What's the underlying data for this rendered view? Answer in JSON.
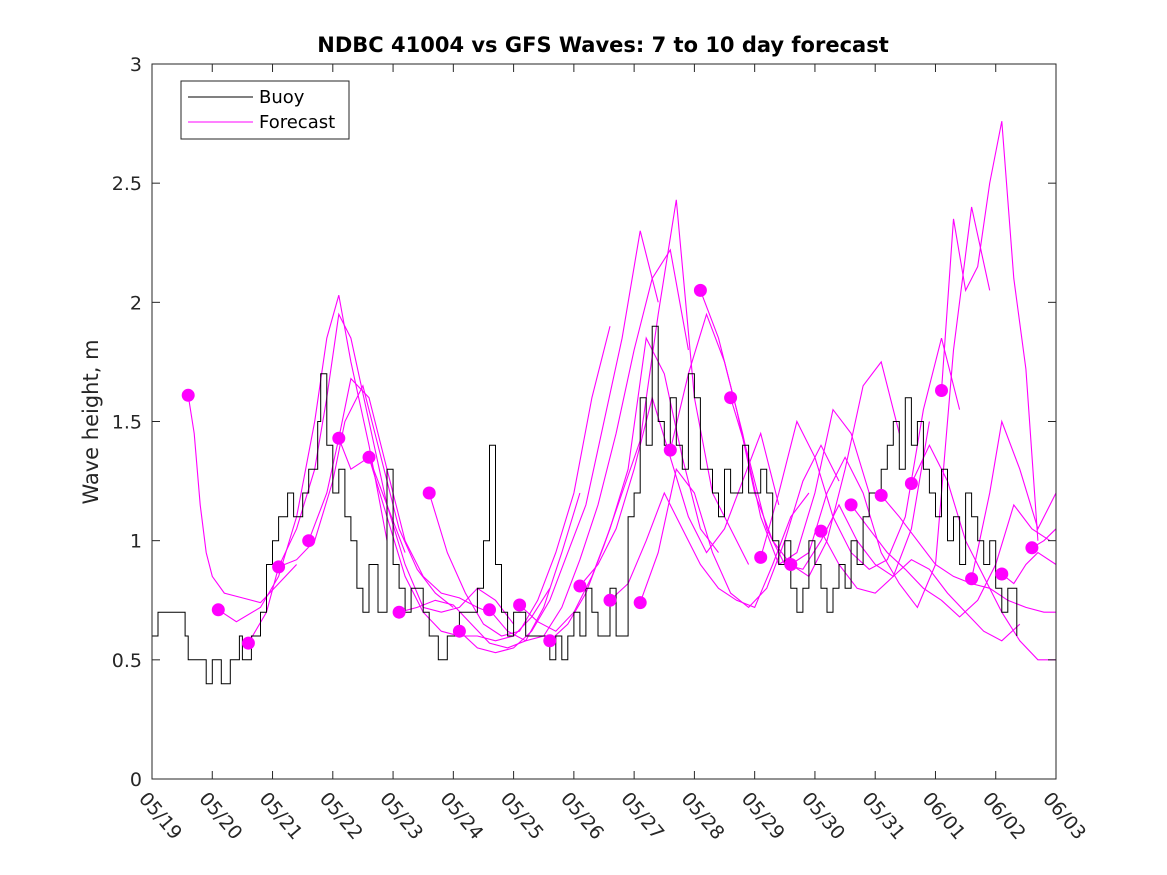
{
  "chart_data": {
    "type": "line",
    "title": "NDBC 41004 vs GFS Waves: 7 to 10 day forecast",
    "xlabel": "",
    "ylabel": "Wave height, m",
    "xlim_days": [
      0,
      15
    ],
    "ylim": [
      0,
      3
    ],
    "yticks": [
      "0",
      "0.5",
      "1",
      "1.5",
      "2",
      "2.5",
      "3"
    ],
    "xticks": [
      "05/19",
      "05/20",
      "05/21",
      "05/22",
      "05/23",
      "05/24",
      "05/25",
      "05/26",
      "05/27",
      "05/28",
      "05/29",
      "05/30",
      "05/31",
      "06/01",
      "06/02",
      "06/03"
    ],
    "grid": false,
    "legend": {
      "location": "top-left",
      "entries": [
        "Buoy",
        "Forecast"
      ]
    },
    "colors": {
      "buoy": "#000000",
      "forecast": "#ff00ff"
    },
    "buoy": {
      "name": "Buoy",
      "x": [
        0,
        0.1,
        0.5,
        0.55,
        0.6,
        0.8,
        0.9,
        1.0,
        1.05,
        1.15,
        1.3,
        1.45,
        1.5,
        1.65,
        1.8,
        1.9,
        2.0,
        2.1,
        2.25,
        2.35,
        2.5,
        2.6,
        2.75,
        2.8,
        2.9,
        3.0,
        3.1,
        3.2,
        3.3,
        3.4,
        3.5,
        3.6,
        3.75,
        3.9,
        4.0,
        4.1,
        4.2,
        4.3,
        4.5,
        4.6,
        4.75,
        4.9,
        5.0,
        5.1,
        5.3,
        5.4,
        5.5,
        5.6,
        5.7,
        5.8,
        5.9,
        6.0,
        6.1,
        6.2,
        6.3,
        6.45,
        6.6,
        6.7,
        6.8,
        6.9,
        7.0,
        7.1,
        7.2,
        7.3,
        7.4,
        7.5,
        7.6,
        7.7,
        7.8,
        7.9,
        8.0,
        8.1,
        8.2,
        8.3,
        8.4,
        8.5,
        8.6,
        8.7,
        8.8,
        8.9,
        9.0,
        9.1,
        9.2,
        9.3,
        9.4,
        9.5,
        9.6,
        9.7,
        9.8,
        9.9,
        10.0,
        10.1,
        10.2,
        10.3,
        10.4,
        10.5,
        10.6,
        10.7,
        10.8,
        10.9,
        11.0,
        11.1,
        11.2,
        11.3,
        11.4,
        11.5,
        11.6,
        11.7,
        11.8,
        11.9,
        12.0,
        12.1,
        12.2,
        12.3,
        12.4,
        12.5,
        12.6,
        12.7,
        12.8,
        12.9,
        13.0,
        13.1,
        13.2,
        13.3,
        13.4,
        13.5,
        13.6,
        13.7,
        13.8,
        13.9,
        14.0,
        14.1,
        14.2,
        14.35
      ],
      "y": [
        0.6,
        0.7,
        0.7,
        0.6,
        0.5,
        0.5,
        0.4,
        0.5,
        0.5,
        0.4,
        0.5,
        0.6,
        0.5,
        0.6,
        0.7,
        0.9,
        1.0,
        1.1,
        1.2,
        1.1,
        1.2,
        1.3,
        1.5,
        1.7,
        1.4,
        1.2,
        1.3,
        1.1,
        1.0,
        0.8,
        0.7,
        0.9,
        0.7,
        1.3,
        0.9,
        0.8,
        0.7,
        0.8,
        0.7,
        0.6,
        0.5,
        0.6,
        0.6,
        0.7,
        0.7,
        0.8,
        1.0,
        1.4,
        0.9,
        0.7,
        0.6,
        0.7,
        0.7,
        0.6,
        0.6,
        0.6,
        0.5,
        0.6,
        0.5,
        0.6,
        0.7,
        0.6,
        0.8,
        0.7,
        0.6,
        0.6,
        0.8,
        0.6,
        0.6,
        1.1,
        1.2,
        1.6,
        1.4,
        1.9,
        1.5,
        1.4,
        1.6,
        1.4,
        1.3,
        1.7,
        1.6,
        1.3,
        1.3,
        1.2,
        1.1,
        1.3,
        1.2,
        1.2,
        1.4,
        1.2,
        1.2,
        1.3,
        1.2,
        1.0,
        0.9,
        1.0,
        0.8,
        0.7,
        0.8,
        1.0,
        0.9,
        0.8,
        0.7,
        0.8,
        0.9,
        0.8,
        1.0,
        0.9,
        1.1,
        1.2,
        1.2,
        1.3,
        1.4,
        1.5,
        1.3,
        1.6,
        1.4,
        1.5,
        1.3,
        1.2,
        1.1,
        1.3,
        1.0,
        1.1,
        0.9,
        1.2,
        1.1,
        1.0,
        0.9,
        1.0,
        0.8,
        0.7,
        0.8,
        0.6
      ],
      "step": true
    },
    "forecast_points": {
      "name": "Forecast",
      "x": [
        0.6,
        1.1,
        1.6,
        2.1,
        2.6,
        3.1,
        3.6,
        4.1,
        4.6,
        5.1,
        5.6,
        6.1,
        6.6,
        7.1,
        7.6,
        8.1,
        8.6,
        9.1,
        9.6,
        10.1,
        10.6,
        11.1,
        11.6,
        12.1,
        12.6,
        13.1,
        13.6,
        14.1,
        14.6
      ],
      "y": [
        1.61,
        0.71,
        0.57,
        0.89,
        1.0,
        1.43,
        1.35,
        0.7,
        1.2,
        0.62,
        0.71,
        0.73,
        0.58,
        0.81,
        0.75,
        0.74,
        1.38,
        2.05,
        1.6,
        0.93,
        0.9,
        1.04,
        1.15,
        1.19,
        1.24,
        1.63,
        0.84,
        0.86,
        0.97
      ]
    },
    "forecast_runs": [
      {
        "x": [
          0.6,
          0.7,
          0.8,
          0.9,
          1.0,
          1.2,
          1.5,
          1.8,
          2.1,
          2.4
        ],
        "y": [
          1.61,
          1.45,
          1.15,
          0.95,
          0.85,
          0.78,
          0.76,
          0.74,
          0.82,
          0.9
        ]
      },
      {
        "x": [
          1.1,
          1.4,
          1.8,
          2.1,
          2.4,
          2.7,
          2.9,
          3.1,
          3.3,
          3.6,
          3.9
        ],
        "y": [
          0.71,
          0.66,
          0.72,
          0.85,
          1.1,
          1.5,
          1.85,
          2.03,
          1.75,
          1.4,
          1.0
        ]
      },
      {
        "x": [
          1.6,
          1.9,
          2.1,
          2.4,
          2.7,
          2.9,
          3.1,
          3.3,
          3.6,
          3.9,
          4.2
        ],
        "y": [
          0.57,
          0.7,
          0.89,
          1.05,
          1.3,
          1.6,
          1.95,
          1.85,
          1.5,
          1.15,
          0.95
        ]
      },
      {
        "x": [
          2.1,
          2.4,
          2.7,
          3.0,
          3.2,
          3.5,
          3.8,
          4.1,
          4.4,
          4.7,
          5.0
        ],
        "y": [
          0.89,
          0.92,
          1.0,
          1.25,
          1.5,
          1.65,
          1.35,
          1.05,
          0.88,
          0.78,
          0.72
        ]
      },
      {
        "x": [
          2.6,
          2.9,
          3.1,
          3.3,
          3.6,
          3.9,
          4.2,
          4.5,
          4.8,
          5.1,
          5.4,
          5.6
        ],
        "y": [
          1.0,
          1.2,
          1.43,
          1.68,
          1.6,
          1.3,
          1.0,
          0.85,
          0.78,
          0.76,
          0.72,
          0.7
        ]
      },
      {
        "x": [
          3.1,
          3.3,
          3.6,
          3.9,
          4.2,
          4.5,
          4.8,
          5.1,
          5.4,
          5.7,
          6.0
        ],
        "y": [
          1.43,
          1.3,
          1.35,
          1.15,
          0.9,
          0.72,
          0.7,
          0.72,
          0.8,
          0.75,
          0.65
        ]
      },
      {
        "x": [
          3.6,
          3.9,
          4.2,
          4.5,
          4.8,
          5.1,
          5.4,
          5.7,
          6.0,
          6.3,
          6.6
        ],
        "y": [
          1.35,
          1.1,
          0.85,
          0.7,
          0.62,
          0.6,
          0.6,
          0.58,
          0.6,
          0.68,
          0.8
        ]
      },
      {
        "x": [
          4.1,
          4.4,
          4.7,
          5.0,
          5.3,
          5.6,
          5.9,
          6.2,
          6.5,
          6.8,
          7.1
        ],
        "y": [
          0.7,
          0.72,
          0.75,
          0.73,
          0.65,
          0.57,
          0.55,
          0.58,
          0.72,
          0.95,
          1.2
        ]
      },
      {
        "x": [
          4.6,
          4.9,
          5.2,
          5.5,
          5.8,
          6.1,
          6.4,
          6.7,
          7.0,
          7.3,
          7.6
        ],
        "y": [
          1.2,
          0.95,
          0.78,
          0.65,
          0.6,
          0.62,
          0.75,
          0.95,
          1.2,
          1.6,
          1.9
        ]
      },
      {
        "x": [
          5.1,
          5.4,
          5.7,
          6.0,
          6.3,
          6.6,
          6.9,
          7.2,
          7.5,
          7.8,
          8.1,
          8.4
        ],
        "y": [
          0.62,
          0.55,
          0.53,
          0.55,
          0.62,
          0.75,
          0.95,
          1.15,
          1.5,
          1.85,
          2.3,
          2.0
        ]
      },
      {
        "x": [
          5.6,
          5.9,
          6.2,
          6.5,
          6.8,
          7.1,
          7.4,
          7.7,
          8.0,
          8.3,
          8.6,
          8.9
        ],
        "y": [
          0.71,
          0.62,
          0.58,
          0.6,
          0.72,
          0.92,
          1.15,
          1.45,
          1.8,
          2.1,
          2.22,
          1.8
        ]
      },
      {
        "x": [
          6.1,
          6.4,
          6.7,
          7.0,
          7.3,
          7.6,
          7.9,
          8.2,
          8.5,
          8.8,
          9.1,
          9.4
        ],
        "y": [
          0.73,
          0.66,
          0.62,
          0.7,
          0.85,
          1.05,
          1.3,
          1.85,
          1.7,
          1.35,
          1.05,
          0.95
        ]
      },
      {
        "x": [
          6.6,
          6.9,
          7.2,
          7.5,
          7.8,
          8.1,
          8.4,
          8.7,
          9.0,
          9.3,
          9.6,
          9.9
        ],
        "y": [
          0.58,
          0.65,
          0.78,
          0.98,
          1.2,
          1.42,
          1.95,
          2.43,
          1.6,
          1.2,
          1.05,
          0.9
        ]
      },
      {
        "x": [
          7.1,
          7.4,
          7.7,
          8.0,
          8.3,
          8.6,
          8.9,
          9.2,
          9.5,
          9.8,
          10.1,
          10.4
        ],
        "y": [
          0.81,
          0.9,
          1.05,
          1.3,
          1.6,
          1.35,
          1.1,
          0.95,
          1.05,
          1.25,
          1.45,
          1.15
        ]
      },
      {
        "x": [
          7.6,
          7.9,
          8.2,
          8.5,
          8.8,
          9.1,
          9.4,
          9.7,
          10.0,
          10.3,
          10.6,
          10.9
        ],
        "y": [
          0.75,
          0.82,
          1.0,
          1.2,
          1.05,
          0.9,
          0.8,
          0.75,
          0.72,
          0.9,
          1.1,
          1.2
        ]
      },
      {
        "x": [
          8.1,
          8.4,
          8.7,
          9.0,
          9.3,
          9.6,
          9.9,
          10.2,
          10.5,
          10.8,
          11.1,
          11.4
        ],
        "y": [
          0.74,
          0.95,
          1.3,
          1.2,
          0.95,
          0.78,
          0.72,
          0.8,
          1.0,
          1.25,
          1.4,
          1.25
        ]
      },
      {
        "x": [
          8.6,
          8.9,
          9.2,
          9.5,
          9.8,
          10.1,
          10.4,
          10.7,
          11.0,
          11.3,
          11.6,
          11.9
        ],
        "y": [
          1.38,
          1.7,
          1.95,
          1.75,
          1.45,
          1.1,
          0.9,
          0.95,
          1.2,
          1.55,
          1.45,
          1.2
        ]
      },
      {
        "x": [
          9.1,
          9.4,
          9.7,
          10.0,
          10.3,
          10.6,
          10.9,
          11.2,
          11.5,
          11.8,
          12.1,
          12.4
        ],
        "y": [
          2.05,
          1.85,
          1.55,
          1.2,
          1.0,
          0.9,
          0.85,
          1.0,
          1.3,
          1.65,
          1.75,
          1.45
        ]
      },
      {
        "x": [
          9.6,
          9.9,
          10.2,
          10.5,
          10.8,
          11.1,
          11.4,
          11.7,
          12.0,
          12.3,
          12.6,
          12.9
        ],
        "y": [
          1.6,
          1.35,
          1.05,
          0.9,
          0.88,
          1.0,
          1.15,
          1.0,
          0.9,
          0.85,
          1.05,
          1.5
        ]
      },
      {
        "x": [
          10.1,
          10.4,
          10.7,
          11.0,
          11.3,
          11.6,
          11.9,
          12.2,
          12.5,
          12.8,
          13.1,
          13.4
        ],
        "y": [
          0.93,
          1.2,
          1.5,
          1.35,
          1.1,
          0.95,
          0.88,
          0.92,
          1.1,
          1.55,
          1.85,
          1.55
        ]
      },
      {
        "x": [
          10.6,
          10.9,
          11.2,
          11.5,
          11.8,
          12.1,
          12.4,
          12.7,
          13.0,
          13.3,
          13.6,
          13.9
        ],
        "y": [
          0.9,
          0.95,
          1.2,
          1.35,
          1.2,
          0.95,
          0.82,
          0.72,
          0.9,
          1.8,
          2.4,
          2.05
        ]
      },
      {
        "x": [
          11.1,
          11.4,
          11.7,
          12.0,
          12.3,
          12.6,
          12.9,
          13.2,
          13.5,
          13.8,
          14.1,
          14.4
        ],
        "y": [
          1.04,
          0.9,
          0.8,
          0.78,
          0.85,
          0.92,
          0.88,
          0.78,
          0.7,
          0.62,
          0.58,
          0.65
        ]
      },
      {
        "x": [
          11.6,
          11.9,
          12.2,
          12.5,
          12.8,
          13.1,
          13.4,
          13.7,
          14.0,
          14.3,
          14.6,
          14.9
        ],
        "y": [
          1.15,
          1.05,
          0.95,
          0.88,
          0.8,
          0.75,
          0.68,
          0.75,
          0.9,
          1.15,
          1.05,
          1.0
        ]
      },
      {
        "x": [
          12.1,
          12.4,
          12.7,
          13.0,
          13.3,
          13.6,
          13.9,
          14.2,
          14.5,
          14.8,
          15.0
        ],
        "y": [
          1.19,
          1.1,
          1.0,
          0.9,
          0.85,
          0.82,
          0.8,
          0.75,
          0.72,
          0.7,
          0.7
        ]
      },
      {
        "x": [
          12.6,
          12.9,
          13.2,
          13.5,
          13.8,
          14.1,
          14.4,
          14.7,
          15.0
        ],
        "y": [
          1.24,
          1.4,
          1.25,
          1.0,
          0.85,
          0.7,
          0.58,
          0.5,
          0.5
        ]
      },
      {
        "x": [
          13.1,
          13.3,
          13.5,
          13.7,
          13.9,
          14.1,
          14.3,
          14.5,
          14.7
        ],
        "y": [
          1.63,
          2.35,
          2.05,
          2.15,
          2.5,
          2.76,
          2.1,
          1.72,
          1.0
        ]
      },
      {
        "x": [
          13.6,
          13.9,
          14.1,
          14.4,
          14.7,
          15.0
        ],
        "y": [
          0.84,
          1.2,
          1.5,
          1.3,
          1.05,
          1.2
        ]
      },
      {
        "x": [
          14.1,
          14.3,
          14.5,
          14.7,
          15.0
        ],
        "y": [
          0.86,
          0.82,
          0.9,
          0.95,
          0.9
        ]
      },
      {
        "x": [
          14.6,
          14.8,
          15.0
        ],
        "y": [
          0.97,
          1.0,
          1.05
        ]
      }
    ]
  }
}
